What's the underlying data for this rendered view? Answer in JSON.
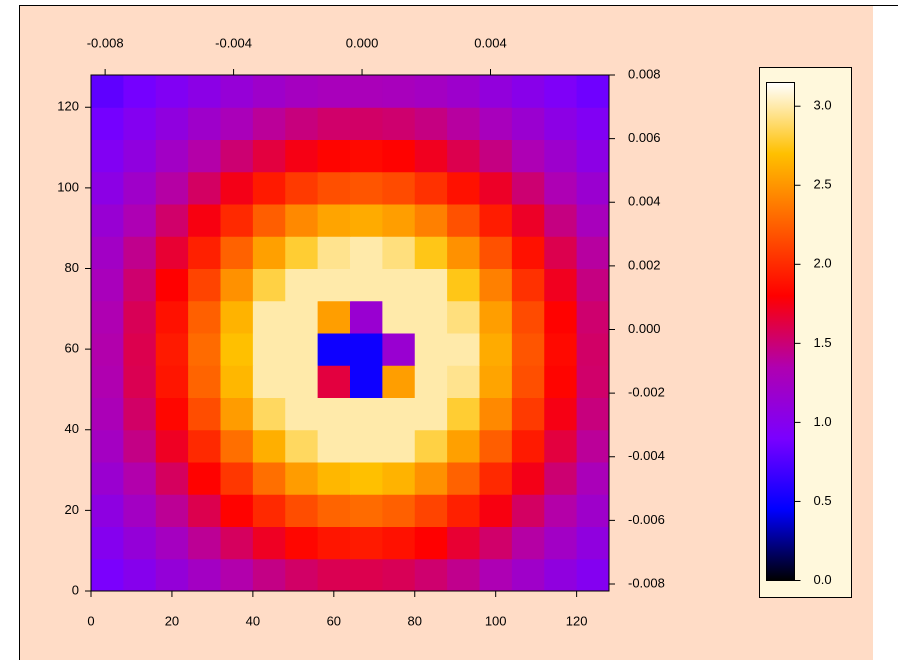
{
  "chart_data": {
    "type": "heatmap",
    "xbins": [
      0,
      8,
      16,
      24,
      32,
      40,
      48,
      56,
      64,
      72,
      80,
      88,
      96,
      104,
      112,
      120,
      128
    ],
    "ybins": [
      0,
      8,
      16,
      24,
      32,
      40,
      48,
      56,
      64,
      72,
      80,
      88,
      96,
      104,
      112,
      120,
      128
    ],
    "z": [
      [
        0.91,
        1.0,
        1.12,
        1.24,
        1.36,
        1.46,
        1.54,
        1.59,
        1.6,
        1.58,
        1.52,
        1.44,
        1.33,
        1.21,
        1.08,
        0.98
      ],
      [
        0.99,
        1.12,
        1.26,
        1.42,
        1.56,
        1.71,
        1.83,
        1.9,
        1.92,
        1.88,
        1.8,
        1.67,
        1.53,
        1.38,
        1.23,
        1.08
      ],
      [
        1.07,
        1.24,
        1.42,
        1.6,
        1.81,
        1.99,
        2.16,
        2.27,
        2.3,
        2.25,
        2.12,
        1.95,
        1.76,
        1.55,
        1.37,
        1.2
      ],
      [
        1.17,
        1.36,
        1.56,
        1.81,
        2.06,
        2.32,
        2.53,
        2.66,
        2.7,
        2.64,
        2.48,
        2.26,
        1.99,
        1.74,
        1.51,
        1.3
      ],
      [
        1.25,
        1.46,
        1.71,
        1.99,
        2.32,
        2.62,
        2.87,
        3.0,
        3.0,
        3.0,
        2.82,
        2.55,
        2.24,
        1.92,
        1.64,
        1.41
      ],
      [
        1.31,
        1.54,
        1.83,
        2.16,
        2.53,
        2.87,
        3.0,
        3.0,
        3.0,
        3.0,
        3.0,
        2.79,
        2.44,
        2.07,
        1.75,
        1.48
      ],
      [
        1.35,
        1.59,
        1.9,
        2.27,
        2.66,
        3.0,
        3.0,
        1.64,
        0.5,
        2.54,
        3.0,
        2.95,
        2.57,
        2.17,
        1.82,
        1.53
      ],
      [
        1.36,
        1.6,
        1.92,
        2.3,
        2.7,
        3.0,
        3.0,
        0.5,
        0.5,
        1.16,
        3.0,
        3.0,
        2.6,
        2.2,
        1.84,
        1.54
      ],
      [
        1.34,
        1.58,
        1.88,
        2.25,
        2.64,
        3.0,
        3.0,
        2.54,
        1.16,
        3.0,
        3.0,
        2.92,
        2.54,
        2.15,
        1.81,
        1.52
      ],
      [
        1.29,
        1.52,
        1.8,
        2.12,
        2.48,
        2.82,
        3.0,
        3.0,
        3.0,
        3.0,
        3.0,
        2.74,
        2.4,
        2.03,
        1.72,
        1.47
      ],
      [
        1.23,
        1.44,
        1.67,
        1.95,
        2.26,
        2.55,
        2.79,
        2.95,
        3.0,
        2.92,
        2.74,
        2.48,
        2.18,
        1.88,
        1.6,
        1.39
      ],
      [
        1.15,
        1.33,
        1.53,
        1.76,
        1.99,
        2.24,
        2.44,
        2.57,
        2.6,
        2.54,
        2.4,
        2.18,
        1.93,
        1.7,
        1.47,
        1.28
      ],
      [
        1.05,
        1.21,
        1.38,
        1.55,
        1.74,
        1.92,
        2.07,
        2.17,
        2.2,
        2.15,
        2.03,
        1.88,
        1.7,
        1.51,
        1.33,
        1.17
      ],
      [
        0.97,
        1.08,
        1.23,
        1.37,
        1.51,
        1.64,
        1.75,
        1.82,
        1.84,
        1.81,
        1.72,
        1.6,
        1.47,
        1.33,
        1.19,
        1.05
      ],
      [
        0.88,
        0.98,
        1.08,
        1.2,
        1.3,
        1.41,
        1.48,
        1.53,
        1.54,
        1.52,
        1.47,
        1.39,
        1.28,
        1.17,
        1.05,
        0.96
      ],
      [
        0.8,
        0.88,
        0.96,
        1.04,
        1.13,
        1.2,
        1.26,
        1.29,
        1.3,
        1.28,
        1.25,
        1.19,
        1.1,
        1.02,
        0.94,
        0.86
      ]
    ],
    "xlim": [
      0,
      128
    ],
    "xticks": [
      0,
      20,
      40,
      60,
      80,
      100,
      120
    ],
    "ylim": [
      0,
      128
    ],
    "yticks": [
      0,
      20,
      40,
      60,
      80,
      100,
      120
    ],
    "x2lim": [
      -0.00844,
      0.00769
    ],
    "x2ticks": [
      {
        "value": -0.008,
        "label": "-0.008"
      },
      {
        "value": -0.004,
        "label": "-0.004"
      },
      {
        "value": 0,
        "label": "0.000"
      },
      {
        "value": 0.004,
        "label": "0.004"
      }
    ],
    "y2lim": [
      -0.00822,
      0.008
    ],
    "y2ticks": [
      {
        "value": -0.008,
        "label": "-0.008"
      },
      {
        "value": -0.006,
        "label": "-0.006"
      },
      {
        "value": -0.004,
        "label": "-0.004"
      },
      {
        "value": -0.002,
        "label": "-0.002"
      },
      {
        "value": 0,
        "label": "0.000"
      },
      {
        "value": 0.002,
        "label": "0.002"
      },
      {
        "value": 0.004,
        "label": "0.004"
      },
      {
        "value": 0.006,
        "label": "0.006"
      },
      {
        "value": 0.008,
        "label": "0.008"
      }
    ],
    "zlim": [
      0,
      3.15
    ],
    "zticks": [
      {
        "value": 0,
        "label": "0.0"
      },
      0.5,
      {
        "value": 1,
        "label": "1.0"
      },
      1.5,
      {
        "value": 2,
        "label": "2.0"
      },
      2.5,
      {
        "value": 3,
        "label": "3.0"
      }
    ],
    "colormap": [
      "#000000",
      "#0000ff",
      "#7a00ff",
      "#b000b0",
      "#ff0000",
      "#ff6000",
      "#ffc000",
      "#ffffff"
    ]
  }
}
